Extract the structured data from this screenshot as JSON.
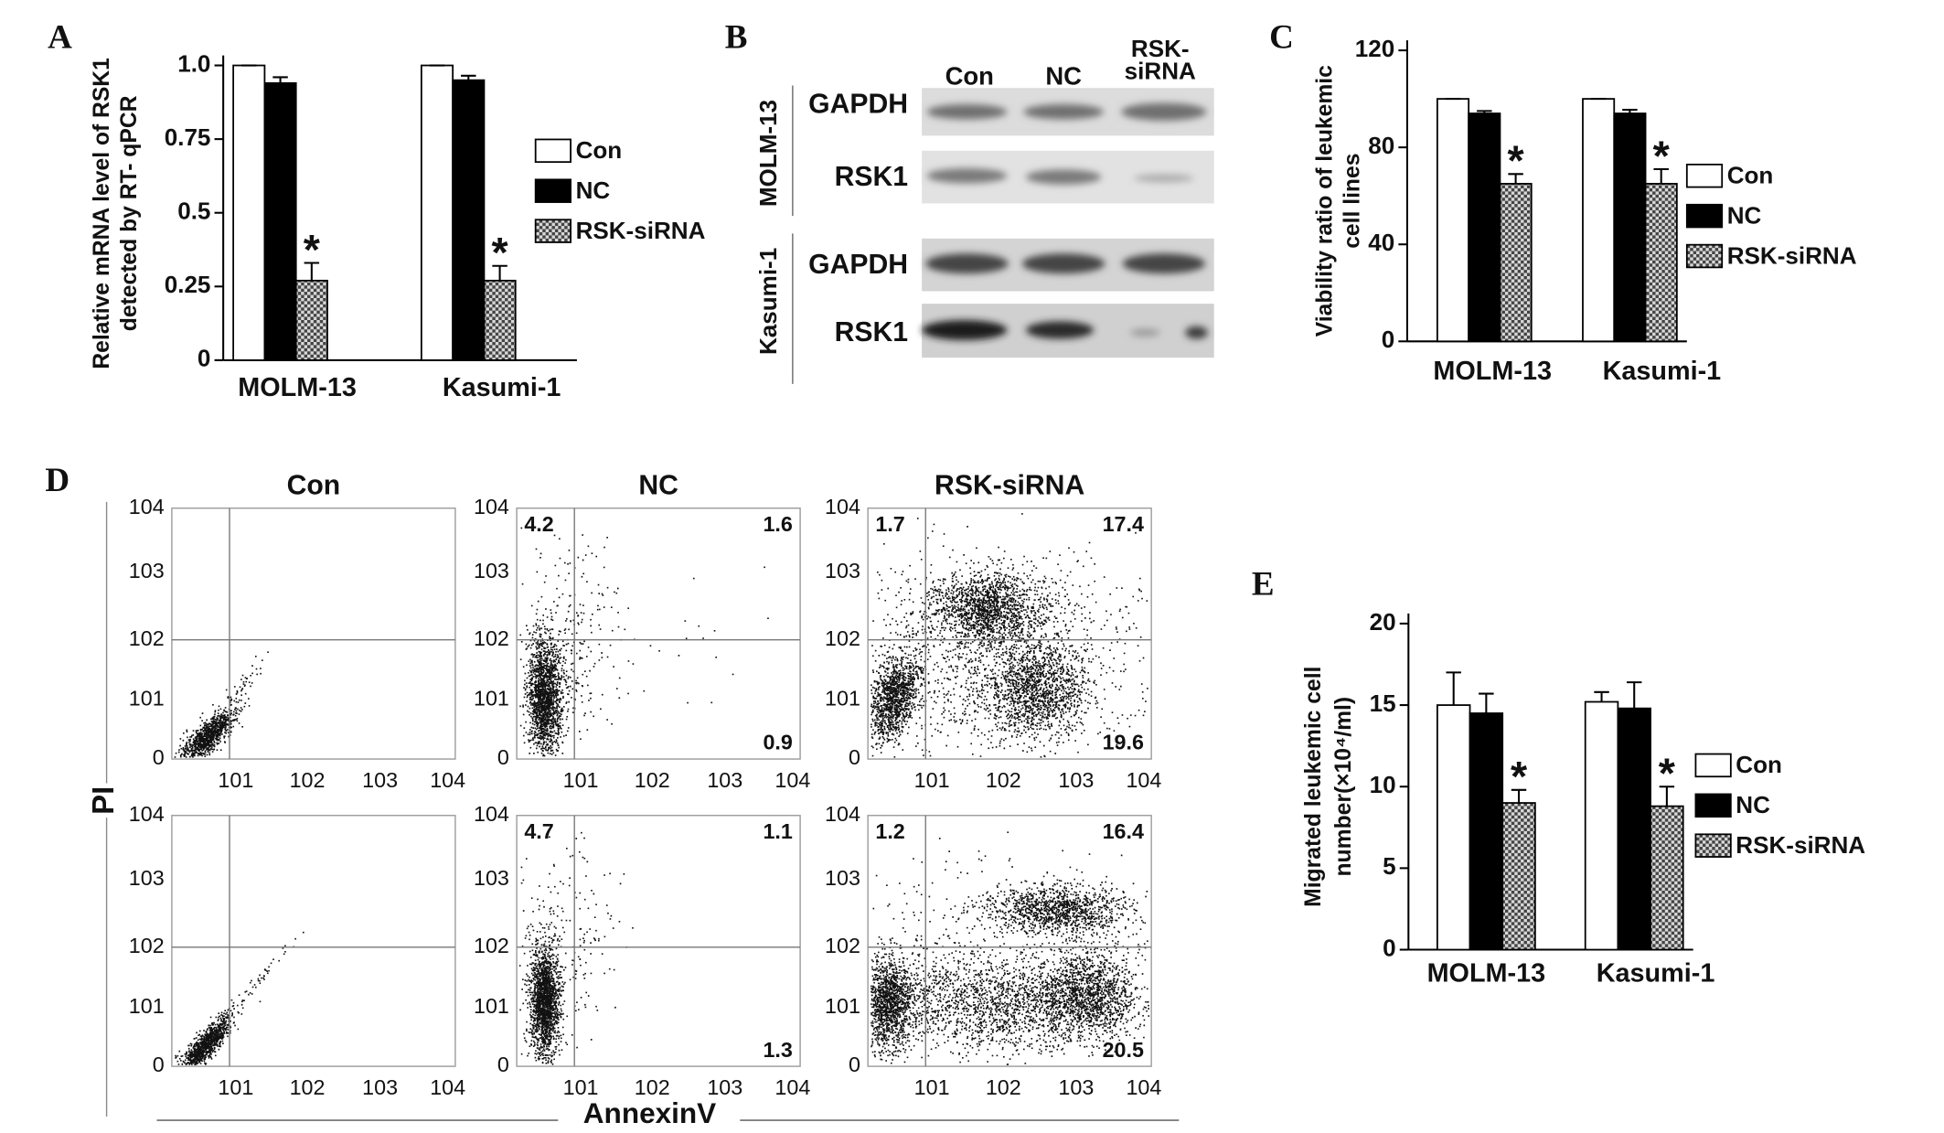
{
  "chart_data": [
    {
      "type": "bar",
      "panel_label": "A",
      "ylabel": [
        "Relative mRNA level of RSK1",
        "detected by RT- qPCR"
      ],
      "categories": [
        "MOLM-13",
        "Kasumi-1"
      ],
      "series": [
        {
          "name": "Con",
          "color": "#ffffff",
          "values": [
            1.0,
            1.0
          ],
          "errors": [
            0,
            0
          ]
        },
        {
          "name": "NC",
          "color": "#000000",
          "values": [
            0.94,
            0.95
          ],
          "errors": [
            0.02,
            0.015
          ]
        },
        {
          "name": "RSK-siRNA",
          "color": "#9a9a9a",
          "pattern": "checkered",
          "values": [
            0.27,
            0.27
          ],
          "errors": [
            0.06,
            0.05
          ]
        }
      ],
      "annotations": [
        {
          "text": "*",
          "category": "MOLM-13",
          "series": "RSK-siRNA"
        },
        {
          "text": "*",
          "category": "Kasumi-1",
          "series": "RSK-siRNA"
        }
      ],
      "ylim": [
        0,
        1
      ],
      "yticks": [
        0,
        0.25,
        0.5,
        0.75,
        {
          "value": 1,
          "label": "1.0"
        }
      ]
    },
    {
      "type": "bar",
      "panel_label": "C",
      "ylabel": [
        "Viability ratio of  leukemic",
        "cell lines"
      ],
      "categories": [
        "MOLM-13",
        "Kasumi-1"
      ],
      "series": [
        {
          "name": "Con",
          "color": "#ffffff",
          "values": [
            100,
            100
          ],
          "errors": [
            0,
            0
          ]
        },
        {
          "name": "NC",
          "color": "#000000",
          "values": [
            94,
            94
          ],
          "errors": [
            1,
            1.5
          ]
        },
        {
          "name": "RSK-siRNA",
          "color": "#9a9a9a",
          "pattern": "checkered",
          "values": [
            65,
            65
          ],
          "errors": [
            4,
            6
          ]
        }
      ],
      "annotations": [
        {
          "text": "*",
          "category": "MOLM-13",
          "series": "RSK-siRNA"
        },
        {
          "text": "*",
          "category": "Kasumi-1",
          "series": "RSK-siRNA"
        }
      ],
      "ylim": [
        0,
        120
      ],
      "yticks": [
        0,
        40,
        80,
        120
      ]
    },
    {
      "type": "bar",
      "panel_label": "E",
      "ylabel": [
        "Migrated leukemic cell",
        "number(×10⁴/ml)"
      ],
      "categories": [
        "MOLM-13",
        "Kasumi-1"
      ],
      "series": [
        {
          "name": "Con",
          "color": "#ffffff",
          "values": [
            15,
            15.2
          ],
          "errors": [
            2,
            0.6
          ]
        },
        {
          "name": "NC",
          "color": "#000000",
          "values": [
            14.5,
            14.8
          ],
          "errors": [
            1.2,
            1.6
          ]
        },
        {
          "name": "RSK-siRNA",
          "color": "#9a9a9a",
          "pattern": "checkered",
          "values": [
            9,
            8.8
          ],
          "errors": [
            0.8,
            1.2
          ]
        }
      ],
      "annotations": [
        {
          "text": "*",
          "category": "MOLM-13",
          "series": "RSK-siRNA"
        },
        {
          "text": "*",
          "category": "Kasumi-1",
          "series": "RSK-siRNA"
        }
      ],
      "ylim": [
        0,
        20
      ],
      "yticks": [
        0,
        5,
        10,
        15,
        20
      ]
    }
  ],
  "blot": {
    "panel_label": "B",
    "columns": [
      [
        "Con"
      ],
      [
        "NC"
      ],
      [
        "RSK-",
        "siRNA"
      ]
    ],
    "groups": [
      {
        "name": "MOLM-13",
        "rows": [
          "GAPDH",
          "RSK1"
        ]
      },
      {
        "name": "Kasumi-1",
        "rows": [
          "GAPDH",
          "RSK1"
        ]
      }
    ]
  },
  "flow": {
    "panel_label": "D",
    "titles": [
      "Con",
      "NC",
      "RSK-siRNA"
    ],
    "ylabel": "PI",
    "xlabel": "AnnexinV",
    "yticks": [
      "0",
      "101",
      "102",
      "103",
      "104"
    ],
    "xticks": [
      "101",
      "102",
      "103",
      "104"
    ],
    "quadrants": [
      [
        null,
        [
          4.2,
          1.6,
          0.9
        ],
        [
          1.7,
          17.4,
          19.6
        ]
      ],
      [
        null,
        [
          4.7,
          1.1,
          1.3
        ],
        [
          1.2,
          16.4,
          20.5
        ]
      ]
    ]
  }
}
